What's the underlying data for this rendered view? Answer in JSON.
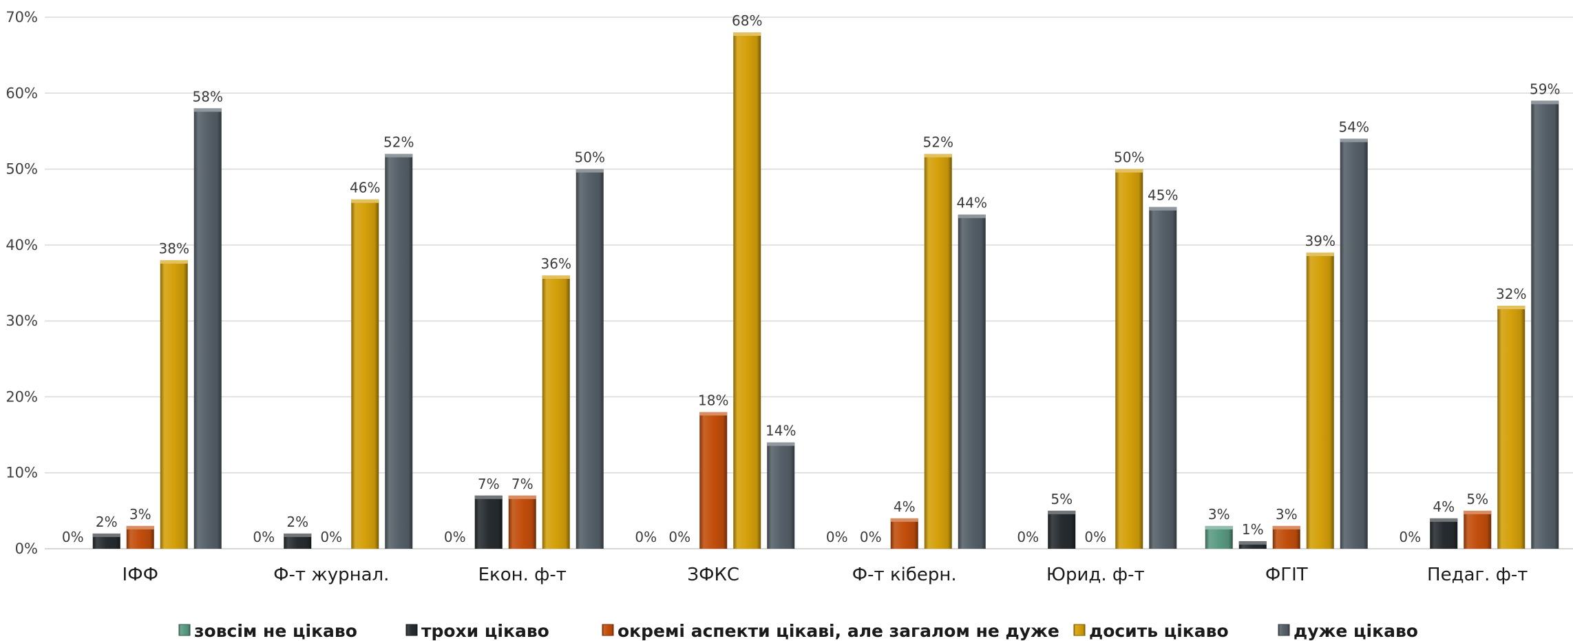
{
  "chart_data": {
    "type": "bar",
    "categories": [
      "ІФФ",
      "Ф-т журнал.",
      "Екон. ф-т",
      "ЗФКС",
      "Ф-т кіберн.",
      "Юрид. ф-т",
      "ФГІТ",
      "Педаг. ф-т"
    ],
    "series": [
      {
        "name": "зовсім не цікаво",
        "color": "#5a9a82",
        "values": [
          0,
          0,
          0,
          0,
          0,
          0,
          3,
          0
        ],
        "labels": [
          "0%",
          "0%",
          "0%",
          "0%",
          "0%",
          "0%",
          "3%",
          "0%"
        ]
      },
      {
        "name": "трохи цікаво",
        "color": "#262c30",
        "values": [
          2,
          2,
          7,
          0,
          0,
          5,
          1,
          4
        ],
        "labels": [
          "2%",
          "2%",
          "7%",
          "0%",
          "0%",
          "5%",
          "1%",
          "4%"
        ]
      },
      {
        "name": "окремі аспекти цікаві, але загалом не дуже",
        "color": "#c24e0c",
        "values": [
          3,
          0,
          7,
          18,
          4,
          0,
          3,
          5
        ],
        "labels": [
          "3%",
          "0%",
          "7%",
          "18%",
          "4%",
          "0%",
          "3%",
          "5%"
        ]
      },
      {
        "name": "досить цікаво",
        "color": "#d4a00a",
        "values": [
          38,
          46,
          36,
          68,
          52,
          50,
          39,
          32
        ],
        "labels": [
          "38%",
          "46%",
          "36%",
          "68%",
          "52%",
          "50%",
          "39%",
          "32%"
        ]
      },
      {
        "name": "дуже цікаво",
        "color": "#566068",
        "values": [
          58,
          52,
          50,
          14,
          44,
          45,
          54,
          59
        ],
        "labels": [
          "58%",
          "52%",
          "50%",
          "14%",
          "44%",
          "45%",
          "54%",
          "59%"
        ]
      }
    ],
    "yticks": [
      "0%",
      "10%",
      "20%",
      "30%",
      "40%",
      "50%",
      "60%",
      "70%"
    ],
    "ylim": [
      0,
      70
    ],
    "title": "",
    "xlabel": "",
    "ylabel": "",
    "grid": true,
    "legend_position": "bottom"
  }
}
